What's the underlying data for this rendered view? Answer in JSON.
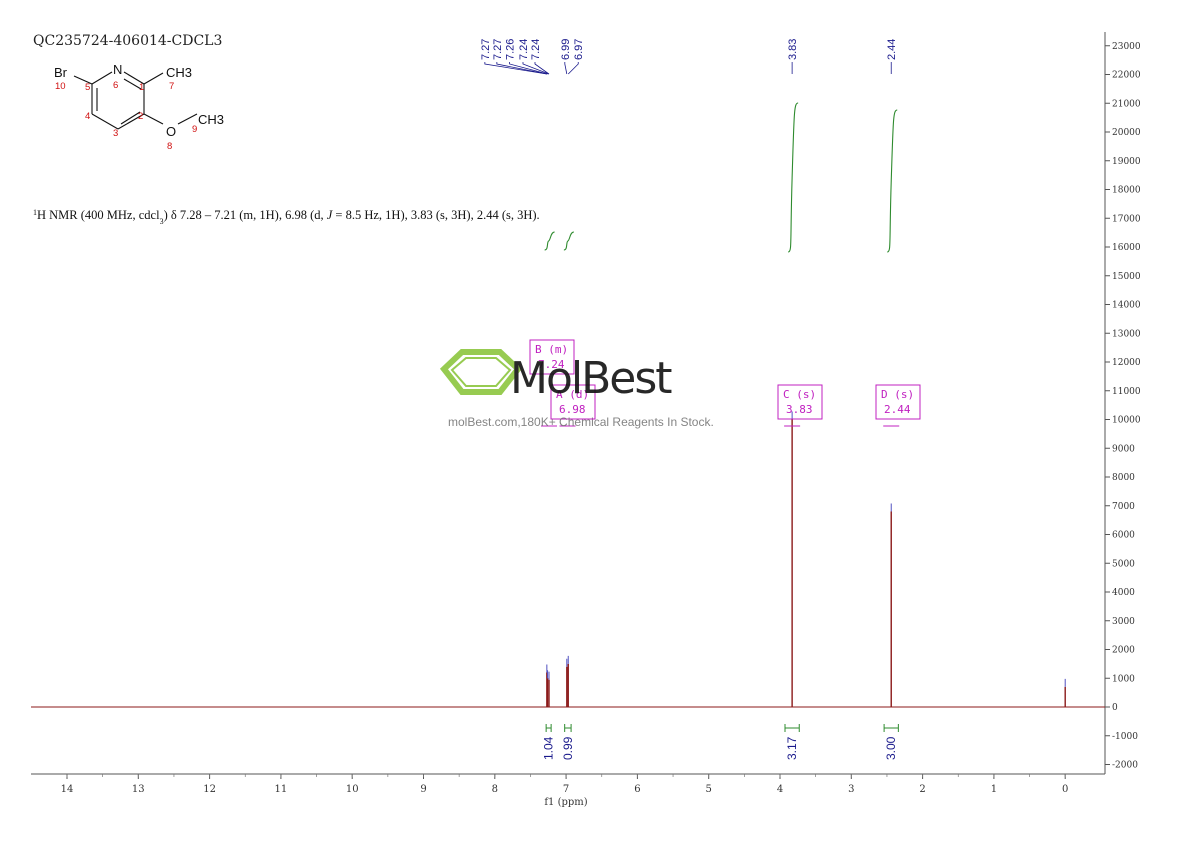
{
  "sample_id": "QC235724-406014-CDCL3",
  "description": {
    "sup": "1",
    "main": "H NMR (400 MHz, cdcl",
    "sub": "3",
    "part2": ") δ 7.28 – 7.21 (m, 1H), 6.98 (d, ",
    "italic": "J",
    "part3": " = 8.5 Hz, 1H), 3.83 (s, 3H), 2.44 (s, 3H)."
  },
  "molecule": {
    "atoms": {
      "br": "Br",
      "n": "N",
      "ch3_top": "CH3",
      "o": "O",
      "ch3_bottom": "CH3"
    },
    "numbers": {
      "n10": "10",
      "n5": "5",
      "n6": "6",
      "n1": "1",
      "n7": "7",
      "n4": "4",
      "n3": "3",
      "n2": "2",
      "n8": "8",
      "n9": "9"
    }
  },
  "watermark": {
    "brand": "MolBest",
    "tagline": "molBest.com,180K+ Chemical Reagents In Stock.",
    "logo_color": "#8cc63f"
  },
  "colors": {
    "spectrum": "#8b1a1a",
    "integral": "#2e8b2e",
    "peak_label": "#1a1a8c",
    "multiplet_box": "#c020c0"
  },
  "chart_data": {
    "type": "line",
    "xlabel": "f1 (ppm)",
    "xlim": [
      14.5,
      -0.55
    ],
    "ylim": [
      -2300,
      23500
    ],
    "x_ticks": [
      "14",
      "13",
      "12",
      "11",
      "10",
      "9",
      "8",
      "7",
      "6",
      "5",
      "4",
      "3",
      "2",
      "1",
      "0"
    ],
    "y_ticks": [
      "23000",
      "22000",
      "21000",
      "20000",
      "19000",
      "18000",
      "17000",
      "16000",
      "15000",
      "14000",
      "13000",
      "12000",
      "11000",
      "10000",
      "9000",
      "8000",
      "7000",
      "6000",
      "5000",
      "4000",
      "3000",
      "2000",
      "1000",
      "0",
      "-1000",
      "-2000"
    ],
    "peaks": [
      {
        "ppm": 7.27,
        "height": 1200
      },
      {
        "ppm": 7.26,
        "height": 1000
      },
      {
        "ppm": 7.24,
        "height": 950
      },
      {
        "ppm": 6.99,
        "height": 1400
      },
      {
        "ppm": 6.97,
        "height": 1500
      },
      {
        "ppm": 3.83,
        "height": 10000
      },
      {
        "ppm": 2.44,
        "height": 6800
      },
      {
        "ppm": 0.0,
        "height": 700
      }
    ],
    "peak_labels": [
      "7.27",
      "7.27",
      "7.26",
      "7.24",
      "7.24",
      "6.99",
      "6.97",
      "3.83",
      "2.44"
    ],
    "integrals": [
      {
        "from": 7.28,
        "to": 7.21,
        "value": "1.04"
      },
      {
        "from": 7.02,
        "to": 6.93,
        "value": "0.99"
      },
      {
        "from": 3.93,
        "to": 3.73,
        "value": "3.17"
      },
      {
        "from": 2.54,
        "to": 2.34,
        "value": "3.00"
      }
    ],
    "multiplets": [
      {
        "letter": "B",
        "type": "(m)",
        "shift": "7.24"
      },
      {
        "letter": "A",
        "type": "(d)",
        "shift": "6.98"
      },
      {
        "letter": "C",
        "type": "(s)",
        "shift": "3.83"
      },
      {
        "letter": "D",
        "type": "(s)",
        "shift": "2.44"
      }
    ]
  }
}
